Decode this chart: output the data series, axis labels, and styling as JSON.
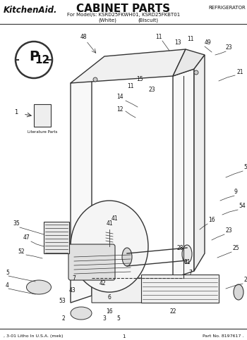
{
  "title": "CABINET PARTS",
  "subtitle": "For Model/s: KSRD25FKWH01, KSRD25FKBT01",
  "subtitle2a": "(White)",
  "subtitle2b": "(Biscuit)",
  "brand": "KitchenAid.",
  "category": "REFRIGERATOR",
  "footer_left": ", 3-01 Litho In U.S.A. (mek)",
  "footer_center": "1",
  "footer_right": "Part No. 8197617 .",
  "bg_color": "#ffffff",
  "lc": "#333333",
  "tc": "#111111"
}
